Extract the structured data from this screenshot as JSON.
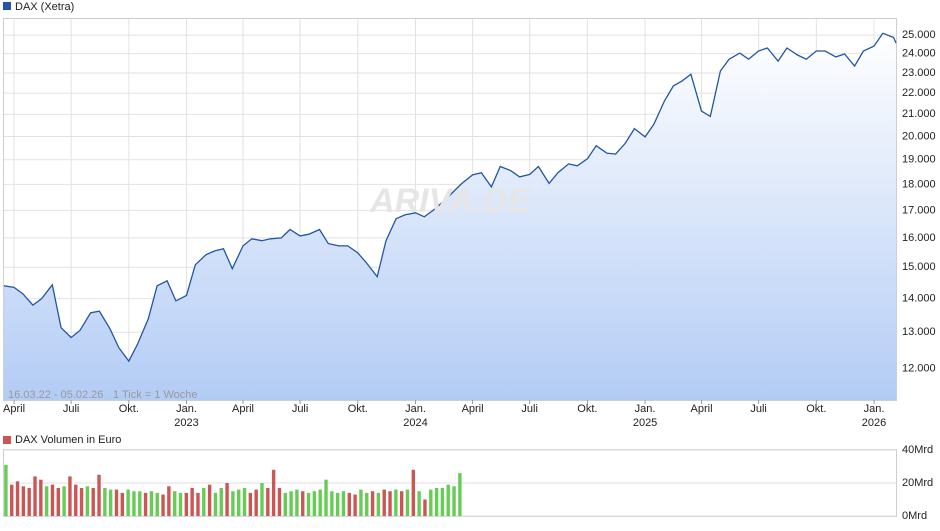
{
  "chart_data": [
    {
      "type": "line",
      "legend": "DAX (Xetra)",
      "watermark": "ARIVA.DE",
      "annotations": [
        "16.03.22 - 05.02.26",
        "1 Tick = 1 Woche"
      ],
      "log_scale": true,
      "grid": true,
      "xlim": [
        "2022-03-16",
        "2026-02-05"
      ],
      "ylim": [
        11200,
        25900
      ],
      "yticks": [
        {
          "value": 12000,
          "label": "12.000"
        },
        {
          "value": 13000,
          "label": "13.000"
        },
        {
          "value": 14000,
          "label": "14.000"
        },
        {
          "value": 15000,
          "label": "15.000"
        },
        {
          "value": 16000,
          "label": "16.000"
        },
        {
          "value": 17000,
          "label": "17.000"
        },
        {
          "value": 18000,
          "label": "18.000"
        },
        {
          "value": 19000,
          "label": "19.000"
        },
        {
          "value": 20000,
          "label": "20.000"
        },
        {
          "value": 21000,
          "label": "21.000"
        },
        {
          "value": 22000,
          "label": "22.000"
        },
        {
          "value": 23000,
          "label": "23.000"
        },
        {
          "value": 24000,
          "label": "24.000"
        },
        {
          "value": 25000,
          "label": "25.000"
        }
      ],
      "xticks": [
        {
          "value": "2022-04-01",
          "label": "April"
        },
        {
          "value": "2022-07-01",
          "label": "Juli"
        },
        {
          "value": "2022-10-01",
          "label": "Okt."
        },
        {
          "value": "2023-01-01",
          "label": "Jan.",
          "year": "2023"
        },
        {
          "value": "2023-04-01",
          "label": "April"
        },
        {
          "value": "2023-07-01",
          "label": "Juli"
        },
        {
          "value": "2023-10-01",
          "label": "Okt."
        },
        {
          "value": "2024-01-01",
          "label": "Jan.",
          "year": "2024"
        },
        {
          "value": "2024-04-01",
          "label": "April"
        },
        {
          "value": "2024-07-01",
          "label": "Juli"
        },
        {
          "value": "2024-10-01",
          "label": "Okt."
        },
        {
          "value": "2025-01-01",
          "label": "Jan.",
          "year": "2025"
        },
        {
          "value": "2025-04-01",
          "label": "April"
        },
        {
          "value": "2025-07-01",
          "label": "Juli"
        },
        {
          "value": "2025-10-01",
          "label": "Okt."
        },
        {
          "value": "2026-01-01",
          "label": "Jan.",
          "year": "2026"
        }
      ],
      "x": [
        "2022-03-16",
        "2022-04-01",
        "2022-04-15",
        "2022-05-01",
        "2022-05-15",
        "2022-06-01",
        "2022-06-15",
        "2022-07-01",
        "2022-07-15",
        "2022-08-01",
        "2022-08-15",
        "2022-09-01",
        "2022-09-15",
        "2022-10-01",
        "2022-10-15",
        "2022-11-01",
        "2022-11-15",
        "2022-12-01",
        "2022-12-15",
        "2023-01-01",
        "2023-01-15",
        "2023-02-01",
        "2023-02-15",
        "2023-03-01",
        "2023-03-15",
        "2023-04-01",
        "2023-04-15",
        "2023-05-01",
        "2023-05-15",
        "2023-06-01",
        "2023-06-15",
        "2023-07-01",
        "2023-07-15",
        "2023-08-01",
        "2023-08-15",
        "2023-09-01",
        "2023-09-15",
        "2023-10-01",
        "2023-10-15",
        "2023-11-01",
        "2023-11-15",
        "2023-12-01",
        "2023-12-15",
        "2024-01-01",
        "2024-01-15",
        "2024-02-01",
        "2024-02-15",
        "2024-03-01",
        "2024-03-15",
        "2024-04-01",
        "2024-04-15",
        "2024-05-01",
        "2024-05-15",
        "2024-06-01",
        "2024-06-15",
        "2024-07-01",
        "2024-07-15",
        "2024-08-01",
        "2024-08-15",
        "2024-09-01",
        "2024-09-15",
        "2024-10-01",
        "2024-10-15",
        "2024-11-01",
        "2024-11-15",
        "2024-12-01",
        "2024-12-15",
        "2025-01-01",
        "2025-01-15",
        "2025-02-01",
        "2025-02-15",
        "2025-03-01",
        "2025-03-15",
        "2025-04-01",
        "2025-04-15",
        "2025-05-01",
        "2025-05-15",
        "2025-06-01",
        "2025-06-15",
        "2025-07-01",
        "2025-07-15",
        "2025-08-01",
        "2025-08-15",
        "2025-09-01",
        "2025-09-15",
        "2025-10-01",
        "2025-10-15",
        "2025-11-01",
        "2025-11-15",
        "2025-12-01",
        "2025-12-15",
        "2026-01-01",
        "2026-01-15",
        "2026-02-01",
        "2026-02-05"
      ],
      "series": [
        {
          "name": "DAX (Xetra)",
          "color": "#2255a4",
          "values": [
            14400,
            14350,
            14150,
            13800,
            14000,
            14430,
            13130,
            12850,
            13050,
            13570,
            13620,
            13100,
            12570,
            12200,
            12670,
            13390,
            14400,
            14560,
            13930,
            14100,
            15080,
            15420,
            15550,
            15620,
            14950,
            15720,
            15970,
            15900,
            15970,
            16000,
            16300,
            16070,
            16130,
            16300,
            15800,
            15720,
            15720,
            15480,
            15140,
            14690,
            15900,
            16690,
            16830,
            16910,
            16760,
            17050,
            17350,
            17700,
            18040,
            18380,
            18470,
            17900,
            18720,
            18550,
            18300,
            18400,
            18720,
            18040,
            18470,
            18830,
            18750,
            19040,
            19600,
            19280,
            19240,
            19720,
            20350,
            19980,
            20550,
            21630,
            22350,
            22600,
            22940,
            21150,
            20900,
            23100,
            23710,
            24030,
            23710,
            24140,
            24300,
            23610,
            24300,
            23930,
            23710,
            24140,
            24140,
            23830,
            23980,
            23350,
            24140,
            24400,
            25100,
            24870,
            24570
          ]
        }
      ]
    },
    {
      "type": "bar",
      "legend": "DAX Volumen in Euro",
      "ylim": [
        0,
        40
      ],
      "yticks": [
        {
          "value": 0,
          "label": "0Mrd"
        },
        {
          "value": 20,
          "label": "20Mrd"
        },
        {
          "value": 40,
          "label": "40Mrd"
        }
      ],
      "categories": [
        null,
        null,
        null,
        null,
        null,
        null,
        null,
        null,
        null,
        null,
        null,
        null,
        null,
        null,
        null,
        null,
        null,
        null,
        null,
        null,
        null,
        null,
        null,
        null,
        null,
        null,
        null,
        null,
        null,
        null,
        null,
        null,
        null,
        null,
        null,
        null,
        null,
        null,
        null,
        null,
        null,
        null,
        null,
        null,
        null,
        null,
        null,
        null,
        null,
        null,
        null,
        null,
        null,
        null,
        null,
        null,
        null,
        null,
        null,
        null,
        null,
        null,
        null,
        null,
        null,
        null,
        null,
        null,
        null,
        null,
        null,
        null,
        null,
        null,
        null,
        null,
        null,
        null,
        null
      ],
      "legend_color": "#cc5555",
      "values": [
        31,
        19,
        21,
        18,
        17,
        24,
        22,
        18,
        19,
        17,
        18,
        24,
        19,
        17,
        18,
        17,
        25,
        17,
        16,
        16,
        14,
        16,
        15,
        15,
        14,
        15,
        14,
        13,
        18,
        15,
        14,
        14,
        17,
        14,
        17,
        19,
        14,
        17,
        20,
        15,
        16,
        17,
        14,
        16,
        20,
        17,
        28,
        17,
        14,
        15,
        16,
        15,
        14,
        15,
        16,
        22,
        15,
        14,
        15,
        14,
        13,
        16,
        14,
        15,
        14,
        16,
        15,
        16,
        15,
        16,
        28,
        15,
        10,
        16,
        17,
        17,
        19,
        18,
        26
      ],
      "colors": [
        "#66cc55",
        "#cc5555",
        "#cc5555",
        "#cc5555",
        "#cc5555",
        "#cc5555",
        "#cc5555",
        "#66cc55",
        "#cc5555",
        "#cc5555",
        "#66cc55",
        "#cc5555",
        "#cc5555",
        "#cc5555",
        "#66cc55",
        "#cc5555",
        "#cc5555",
        "#66cc55",
        "#66cc55",
        "#cc5555",
        "#cc5555",
        "#66cc55",
        "#66cc55",
        "#66cc55",
        "#cc5555",
        "#66cc55",
        "#66cc55",
        "#cc5555",
        "#cc5555",
        "#66cc55",
        "#66cc55",
        "#cc5555",
        "#cc5555",
        "#cc5555",
        "#66cc55",
        "#cc5555",
        "#66cc55",
        "#66cc55",
        "#cc5555",
        "#66cc55",
        "#66cc55",
        "#66cc55",
        "#cc5555",
        "#cc5555",
        "#66cc55",
        "#cc5555",
        "#cc5555",
        "#cc5555",
        "#66cc55",
        "#66cc55",
        "#66cc55",
        "#cc5555",
        "#66cc55",
        "#66cc55",
        "#66cc55",
        "#66cc55",
        "#66cc55",
        "#66cc55",
        "#66cc55",
        "#cc5555",
        "#cc5555",
        "#66cc55",
        "#66cc55",
        "#cc5555",
        "#66cc55",
        "#cc5555",
        "#cc5555",
        "#66cc55",
        "#cc5555",
        "#66cc55",
        "#cc5555",
        "#66cc55",
        "#cc5555",
        "#66cc55",
        "#66cc55",
        "#66cc55",
        "#66cc55",
        "#66cc55",
        "#66cc55"
      ]
    }
  ]
}
